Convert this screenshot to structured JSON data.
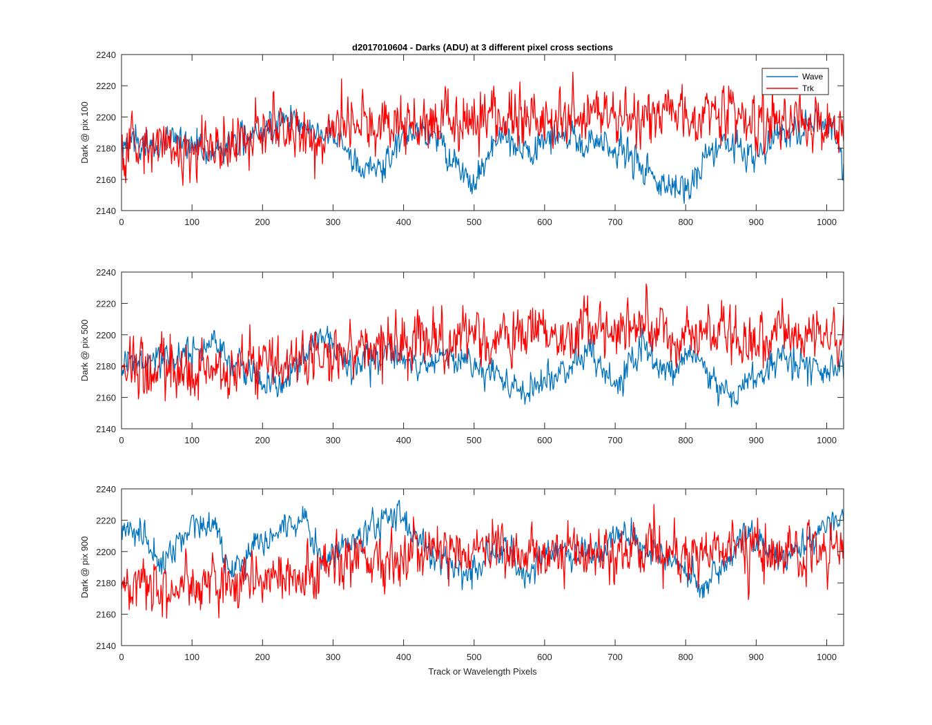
{
  "figure": {
    "title": "d2017010604 - Darks (ADU) at 3 different pixel cross sections",
    "xlabel": "Track or Wavelength Pixels"
  },
  "legend": {
    "entries": [
      {
        "name": "Wave",
        "color": "#0072BD"
      },
      {
        "name": "Trk",
        "color": "#FF0000"
      }
    ],
    "location": "top-right of first panel"
  },
  "chart_data": [
    {
      "type": "line",
      "ylabel": "Dark @ pix 100",
      "xlim": [
        0,
        1024
      ],
      "ylim": [
        2140,
        2240
      ],
      "xticks": [
        0,
        100,
        200,
        300,
        400,
        500,
        600,
        700,
        800,
        900,
        1000
      ],
      "yticks": [
        2140,
        2160,
        2180,
        2200,
        2220,
        2240
      ],
      "grid": false,
      "noise_sd": {
        "Wave": 5,
        "Trk": 9
      },
      "series": [
        {
          "name": "Wave",
          "color": "#0072BD",
          "x": [
            0,
            20,
            50,
            80,
            100,
            130,
            170,
            210,
            240,
            260,
            280,
            300,
            320,
            340,
            370,
            380,
            400,
            430,
            450,
            480,
            490,
            500,
            520,
            540,
            560,
            580,
            600,
            620,
            650,
            680,
            700,
            730,
            760,
            780,
            790,
            810,
            830,
            850,
            880,
            900,
            930,
            960,
            990,
            1010,
            1024
          ],
          "y": [
            2182,
            2183,
            2180,
            2188,
            2180,
            2178,
            2185,
            2195,
            2200,
            2195,
            2188,
            2190,
            2180,
            2165,
            2168,
            2175,
            2190,
            2192,
            2185,
            2167,
            2160,
            2158,
            2175,
            2188,
            2180,
            2175,
            2185,
            2190,
            2182,
            2185,
            2178,
            2174,
            2160,
            2155,
            2152,
            2158,
            2175,
            2182,
            2182,
            2175,
            2190,
            2192,
            2198,
            2190,
            2172
          ]
        },
        {
          "name": "Trk",
          "color": "#FF0000",
          "x": [
            0,
            100,
            200,
            300,
            320,
            400,
            500,
            600,
            700,
            800,
            900,
            1000,
            1024
          ],
          "y": [
            2180,
            2180,
            2188,
            2192,
            2197,
            2197,
            2199,
            2198,
            2200,
            2200,
            2200,
            2198,
            2195
          ]
        }
      ]
    },
    {
      "type": "line",
      "ylabel": "Dark @ pix 500",
      "xlim": [
        0,
        1024
      ],
      "ylim": [
        2140,
        2240
      ],
      "xticks": [
        0,
        100,
        200,
        300,
        400,
        500,
        600,
        700,
        800,
        900,
        1000
      ],
      "yticks": [
        2140,
        2160,
        2180,
        2200,
        2220,
        2240
      ],
      "grid": false,
      "noise_sd": {
        "Wave": 5,
        "Trk": 9
      },
      "series": [
        {
          "name": "Wave",
          "color": "#0072BD",
          "x": [
            0,
            50,
            100,
            120,
            150,
            180,
            200,
            220,
            240,
            260,
            280,
            300,
            320,
            350,
            380,
            400,
            430,
            450,
            480,
            500,
            530,
            560,
            590,
            620,
            650,
            660,
            680,
            700,
            720,
            740,
            760,
            790,
            800,
            820,
            850,
            880,
            910,
            940,
            960,
            990,
            1024
          ],
          "y": [
            2180,
            2183,
            2186,
            2190,
            2185,
            2178,
            2172,
            2166,
            2175,
            2188,
            2195,
            2195,
            2176,
            2183,
            2190,
            2186,
            2182,
            2186,
            2185,
            2180,
            2176,
            2165,
            2168,
            2175,
            2185,
            2190,
            2178,
            2165,
            2182,
            2196,
            2178,
            2178,
            2190,
            2180,
            2163,
            2163,
            2175,
            2188,
            2182,
            2178,
            2177
          ]
        },
        {
          "name": "Trk",
          "color": "#FF0000",
          "x": [
            0,
            100,
            200,
            300,
            400,
            500,
            600,
            700,
            800,
            900,
            1000,
            1024
          ],
          "y": [
            2178,
            2177,
            2180,
            2186,
            2193,
            2198,
            2200,
            2206,
            2200,
            2199,
            2200,
            2198
          ]
        }
      ]
    },
    {
      "type": "line",
      "ylabel": "Dark @ pix 900",
      "xlim": [
        0,
        1024
      ],
      "ylim": [
        2140,
        2240
      ],
      "xticks": [
        0,
        100,
        200,
        300,
        400,
        500,
        600,
        700,
        800,
        900,
        1000
      ],
      "yticks": [
        2140,
        2160,
        2180,
        2200,
        2220,
        2240
      ],
      "grid": false,
      "noise_sd": {
        "Wave": 5,
        "Trk": 9
      },
      "series": [
        {
          "name": "Wave",
          "color": "#0072BD",
          "x": [
            0,
            20,
            40,
            50,
            60,
            70,
            90,
            110,
            130,
            140,
            150,
            160,
            180,
            200,
            220,
            250,
            260,
            270,
            290,
            310,
            340,
            370,
            390,
            410,
            430,
            460,
            490,
            520,
            550,
            570,
            600,
            640,
            670,
            700,
            720,
            750,
            780,
            800,
            820,
            840,
            860,
            880,
            900,
            930,
            950,
            970,
            990,
            1010,
            1024
          ],
          "y": [
            2215,
            2214,
            2205,
            2198,
            2190,
            2200,
            2212,
            2218,
            2216,
            2203,
            2190,
            2188,
            2196,
            2205,
            2212,
            2218,
            2225,
            2205,
            2196,
            2202,
            2210,
            2222,
            2225,
            2212,
            2202,
            2194,
            2186,
            2196,
            2200,
            2183,
            2197,
            2202,
            2197,
            2210,
            2208,
            2198,
            2196,
            2186,
            2178,
            2186,
            2192,
            2206,
            2206,
            2196,
            2200,
            2203,
            2215,
            2222,
            2218
          ]
        },
        {
          "name": "Trk",
          "color": "#FF0000",
          "x": [
            0,
            100,
            200,
            300,
            400,
            500,
            600,
            700,
            800,
            900,
            1000,
            1024
          ],
          "y": [
            2178,
            2177,
            2180,
            2192,
            2198,
            2201,
            2200,
            2203,
            2201,
            2200,
            2201,
            2202
          ]
        }
      ]
    }
  ]
}
